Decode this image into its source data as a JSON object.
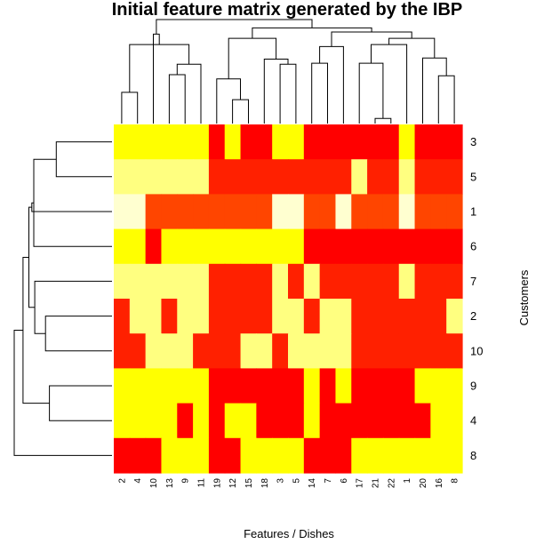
{
  "chart_data": {
    "type": "heatmap",
    "title": "Initial feature matrix generated by the IBP",
    "xlabel": "Features / Dishes",
    "ylabel": "Customers",
    "columns": [
      "2",
      "4",
      "10",
      "13",
      "9",
      "11",
      "19",
      "12",
      "15",
      "18",
      "3",
      "5",
      "14",
      "7",
      "6",
      "17",
      "21",
      "22",
      "1",
      "20",
      "16",
      "8"
    ],
    "rows": [
      "3",
      "5",
      "1",
      "6",
      "7",
      "2",
      "10",
      "9",
      "4",
      "8"
    ],
    "levels": [
      [
        "3",
        "3",
        "3",
        "3",
        "3",
        "3",
        "0",
        "3",
        "0",
        "0",
        "3",
        "3",
        "0",
        "0",
        "0",
        "0",
        "0",
        "0",
        "3",
        "0",
        "0",
        "0"
      ],
      [
        "4",
        "4",
        "4",
        "4",
        "4",
        "4",
        "1",
        "1",
        "1",
        "1",
        "1",
        "1",
        "1",
        "1",
        "1",
        "4",
        "1",
        "1",
        "4",
        "1",
        "1",
        "1"
      ],
      [
        "5",
        "5",
        "2",
        "2",
        "2",
        "2",
        "2",
        "2",
        "2",
        "2",
        "5",
        "5",
        "2",
        "2",
        "5",
        "2",
        "2",
        "2",
        "5",
        "2",
        "2",
        "2"
      ],
      [
        "3",
        "3",
        "0",
        "3",
        "3",
        "3",
        "3",
        "3",
        "3",
        "3",
        "3",
        "3",
        "0",
        "0",
        "0",
        "0",
        "0",
        "0",
        "0",
        "0",
        "0",
        "0"
      ],
      [
        "4",
        "4",
        "4",
        "4",
        "4",
        "4",
        "1",
        "1",
        "1",
        "1",
        "4",
        "1",
        "4",
        "1",
        "1",
        "1",
        "1",
        "1",
        "4",
        "1",
        "1",
        "1"
      ],
      [
        "1",
        "4",
        "4",
        "1",
        "4",
        "4",
        "1",
        "1",
        "1",
        "1",
        "4",
        "4",
        "1",
        "4",
        "4",
        "1",
        "1",
        "1",
        "1",
        "1",
        "1",
        "4"
      ],
      [
        "1",
        "1",
        "4",
        "4",
        "4",
        "1",
        "1",
        "1",
        "4",
        "4",
        "1",
        "4",
        "4",
        "4",
        "4",
        "1",
        "1",
        "1",
        "1",
        "1",
        "1",
        "1"
      ],
      [
        "3",
        "3",
        "3",
        "3",
        "3",
        "3",
        "0",
        "0",
        "0",
        "0",
        "0",
        "0",
        "3",
        "0",
        "3",
        "0",
        "0",
        "0",
        "0",
        "3",
        "3",
        "3"
      ],
      [
        "3",
        "3",
        "3",
        "3",
        "0",
        "3",
        "0",
        "3",
        "3",
        "0",
        "0",
        "0",
        "3",
        "0",
        "0",
        "0",
        "0",
        "0",
        "0",
        "0",
        "3",
        "3"
      ],
      [
        "0",
        "0",
        "0",
        "3",
        "3",
        "3",
        "0",
        "0",
        "3",
        "3",
        "3",
        "3",
        "0",
        "0",
        "0",
        "3",
        "3",
        "3",
        "3",
        "3",
        "3",
        "3"
      ]
    ],
    "palette": {
      "0": "#FF0000",
      "1": "#FF2000",
      "2": "#FF4500",
      "3": "#FFFF00",
      "4": "#FFFF80",
      "5": "#FFFFD0"
    },
    "column_dendrogram": {
      "merges": [
        [
          -1,
          -2,
          0.3
        ],
        [
          -4,
          -5,
          0.47
        ],
        [
          -6,
          2,
          0.57
        ],
        [
          1,
          3,
          0.76
        ],
        [
          -3,
          4,
          0.86
        ],
        [
          -8,
          -9,
          0.23
        ],
        [
          -7,
          6,
          0.43
        ],
        [
          -11,
          -12,
          0.57
        ],
        [
          -10,
          8,
          0.62
        ],
        [
          7,
          9,
          0.82
        ],
        [
          -13,
          -14,
          0.58
        ],
        [
          -15,
          11,
          0.74
        ],
        [
          -17,
          -18,
          0.05
        ],
        [
          -16,
          13,
          0.58
        ],
        [
          -19,
          14,
          0.76
        ],
        [
          -21,
          -22,
          0.46
        ],
        [
          -20,
          16,
          0.63
        ],
        [
          15,
          17,
          0.82
        ],
        [
          12,
          18,
          0.88
        ],
        [
          10,
          19,
          0.92
        ],
        [
          5,
          20,
          1.0
        ]
      ]
    },
    "row_dendrogram": {
      "merges": [
        [
          -1,
          -2,
          0.57
        ],
        [
          -4,
          1,
          0.8
        ],
        [
          -3,
          2,
          0.82
        ],
        [
          -6,
          -7,
          0.68
        ],
        [
          -5,
          4,
          0.79
        ],
        [
          3,
          5,
          0.85
        ],
        [
          -8,
          -9,
          0.64
        ],
        [
          6,
          7,
          0.91
        ],
        [
          -10,
          8,
          1.0
        ]
      ]
    }
  }
}
